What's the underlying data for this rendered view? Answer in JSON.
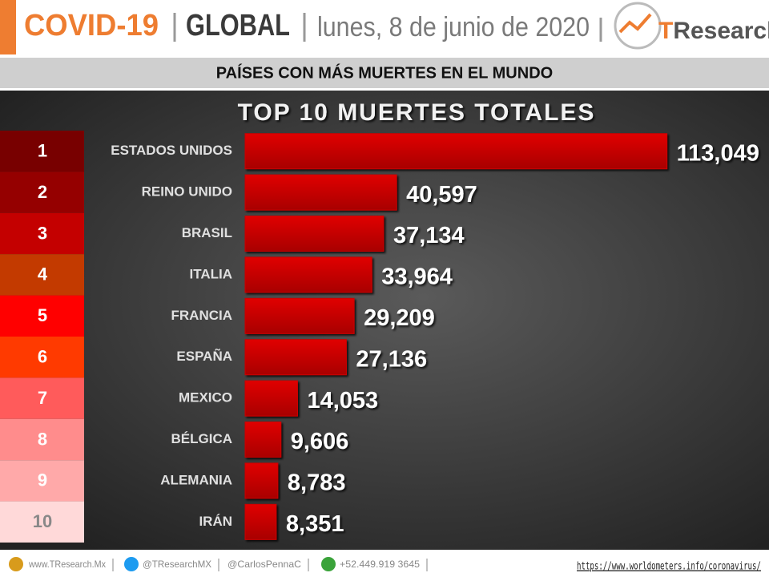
{
  "header": {
    "title_parts": [
      "COVID-19",
      "GLOBAL",
      "lunes, 8 de junio de 2020"
    ],
    "logo": [
      "T",
      "Research"
    ],
    "subtitle": "PAÍSES CON MÁS MUERTES EN EL MUNDO"
  },
  "chart_data": {
    "type": "bar",
    "orientation": "horizontal",
    "title": "TOP 10 MUERTES TOTALES",
    "ranks": [
      1,
      2,
      3,
      4,
      5,
      6,
      7,
      8,
      9,
      10
    ],
    "rank_colors": [
      "#780000",
      "#950000",
      "#c40000",
      "#c33a00",
      "#ff0000",
      "#ff3a00",
      "#ff5b5b",
      "#ff8c8c",
      "#ffa9a9",
      "#ffd9d9"
    ],
    "categories": [
      "ESTADOS UNIDOS",
      "REINO UNIDO",
      "BRASIL",
      "ITALIA",
      "FRANCIA",
      "ESPAÑA",
      "MEXICO",
      "BÉLGICA",
      "ALEMANIA",
      "IRÁN"
    ],
    "values": [
      113049,
      40597,
      37134,
      33964,
      29209,
      27136,
      14053,
      9606,
      8783,
      8351
    ],
    "value_labels": [
      "113,049",
      "40,597",
      "37,134",
      "33,964",
      "29,209",
      "27,136",
      "14,053",
      "9,606",
      "8,783",
      "8,351"
    ],
    "color": "#cc0000",
    "xlim": [
      0,
      120000
    ]
  },
  "footer": {
    "items": [
      "www.TResearch.Mx",
      "@TResearchMX",
      "@CarlosPennaC",
      "+52.449.919 3645"
    ],
    "source": "https://www.worldometers.info/coronavirus/"
  }
}
